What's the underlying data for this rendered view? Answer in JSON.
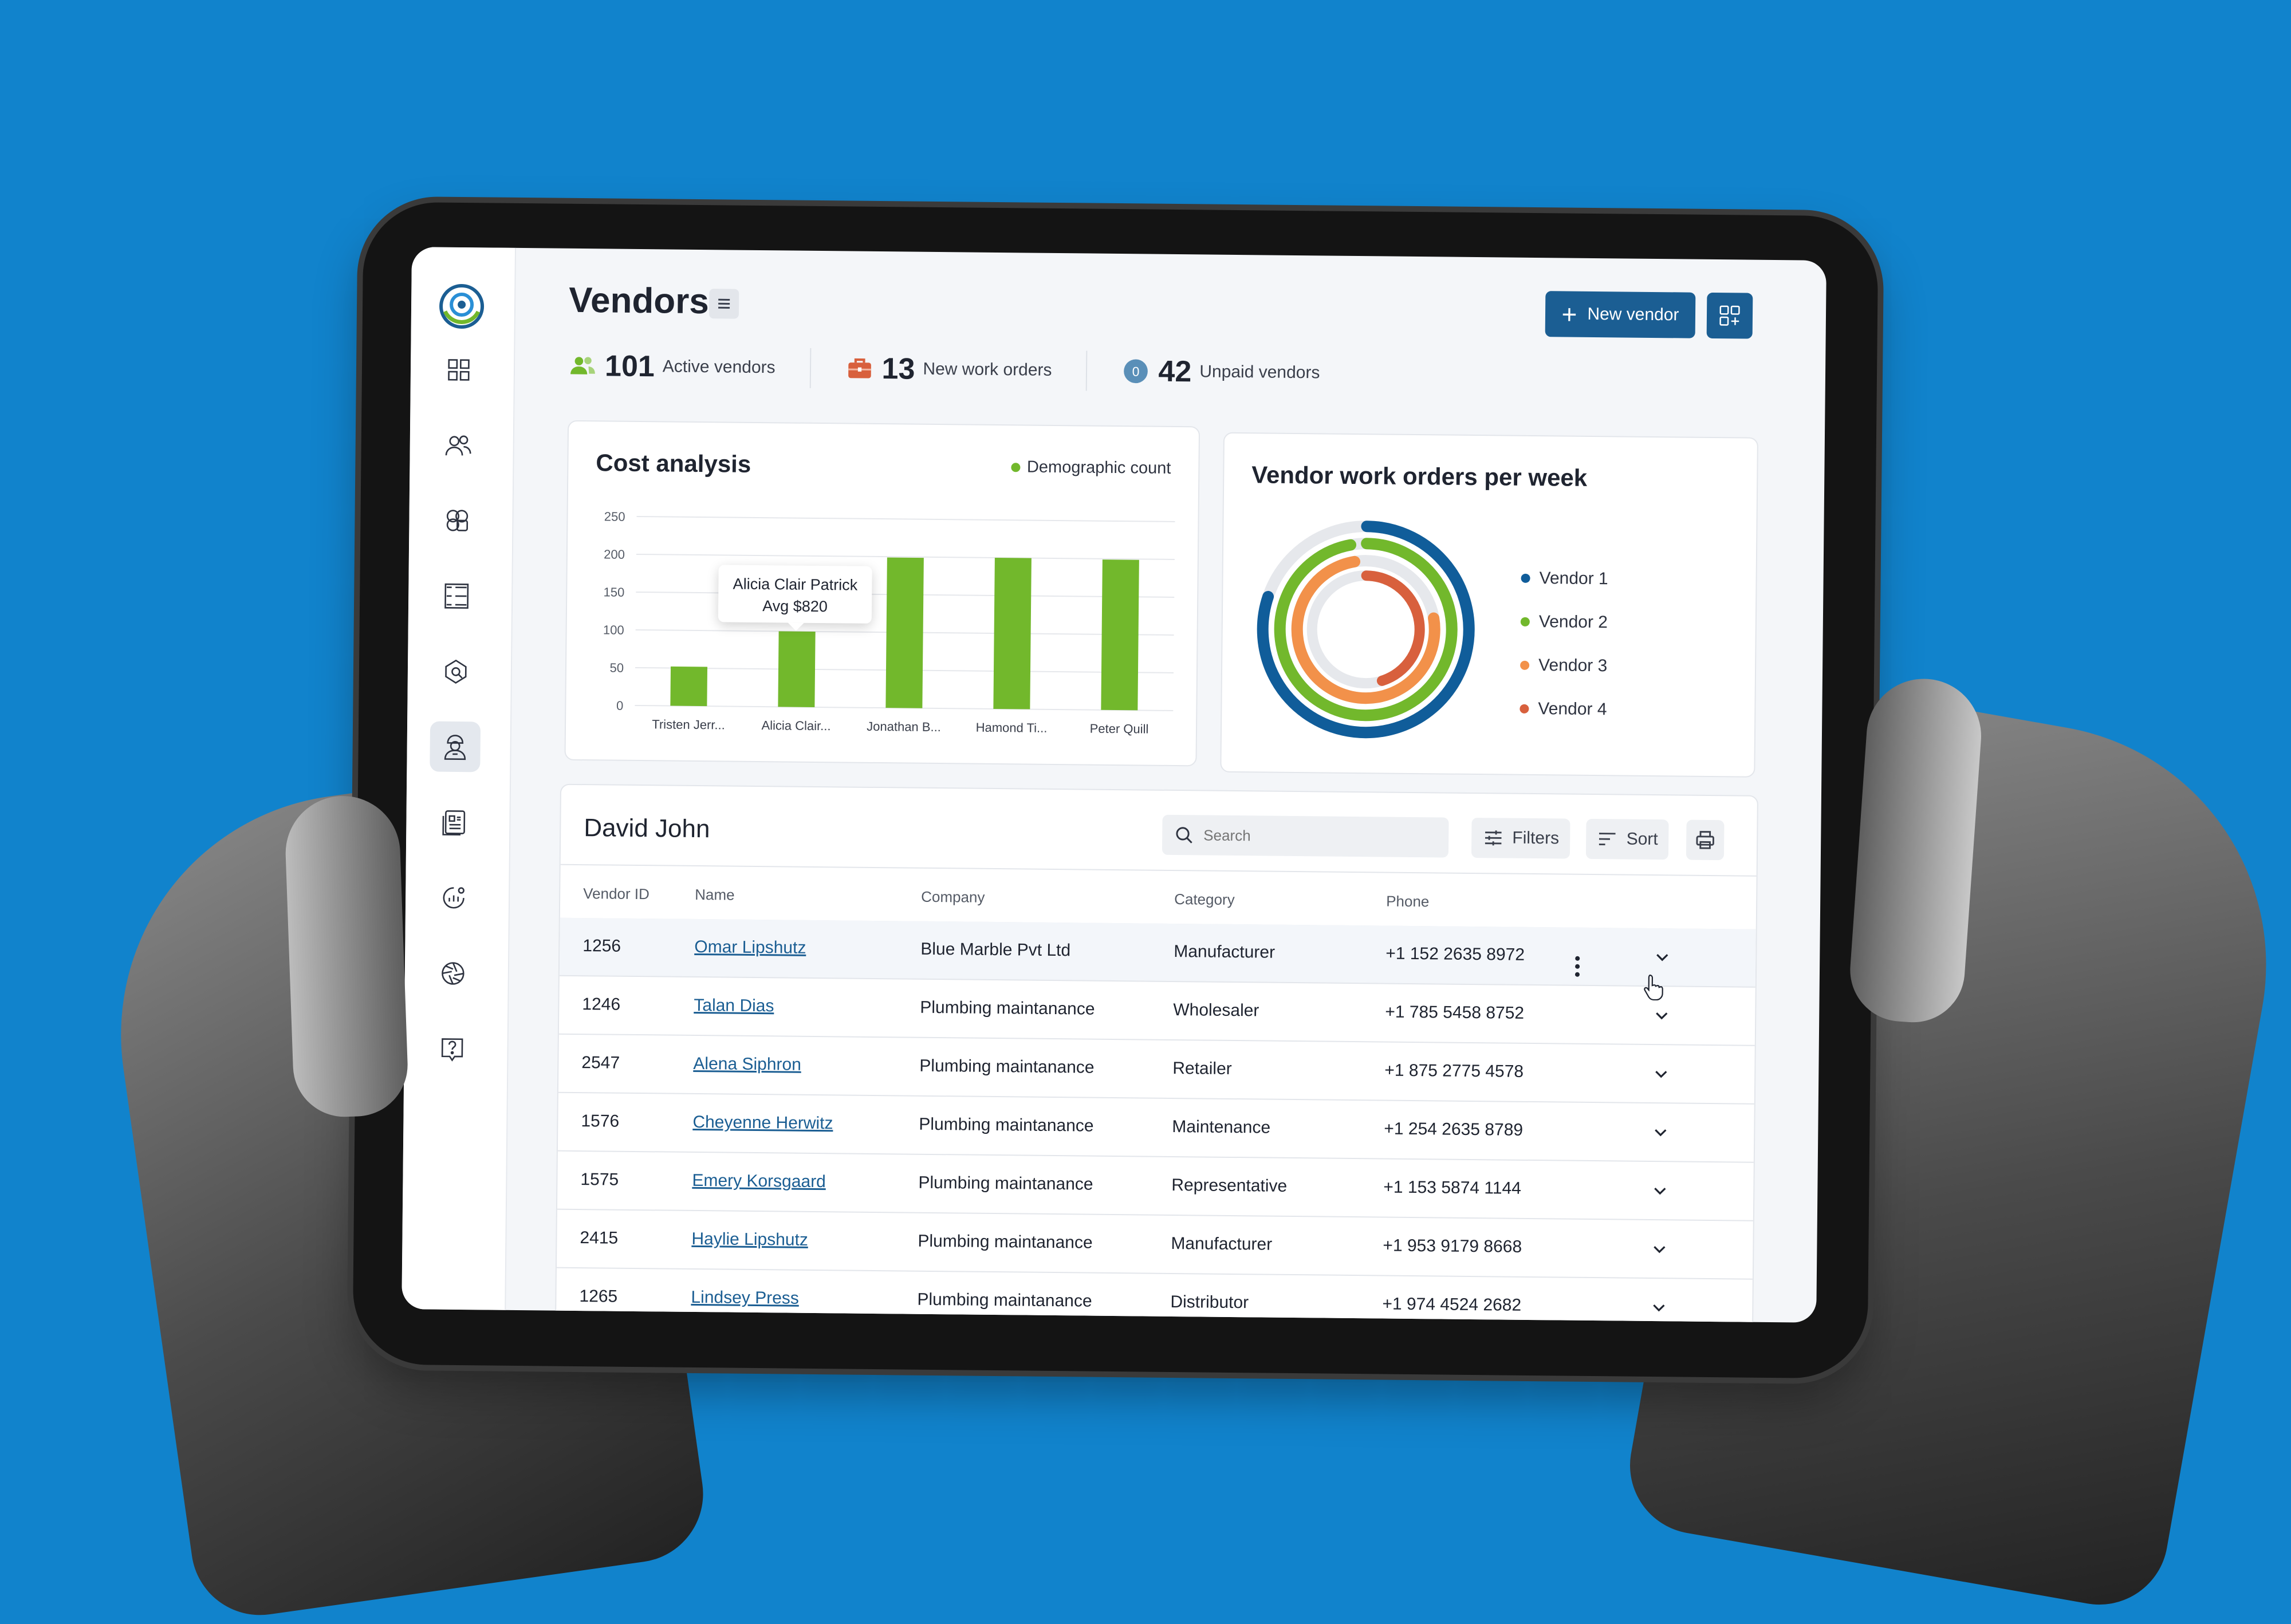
{
  "colors": {
    "background": "#1183cc",
    "primary": "#1b5e93",
    "bar_green": "#72b82c",
    "vendor1": "#105d9a",
    "vendor2": "#72b82c",
    "vendor3": "#f2914a",
    "vendor4": "#d8603d"
  },
  "header": {
    "title": "Vendors",
    "menu_icon": "hamburger-icon",
    "new_vendor_label": "New vendor",
    "layout_icon": "dashboard-add-icon"
  },
  "sidebar": {
    "items": [
      {
        "icon": "dashboard-grid-icon"
      },
      {
        "icon": "users-icon"
      },
      {
        "icon": "assets-icon"
      },
      {
        "icon": "checklist-icon"
      },
      {
        "icon": "location-icon"
      },
      {
        "icon": "vendor-worker-icon",
        "active": true
      },
      {
        "icon": "reports-icon"
      },
      {
        "icon": "analytics-icon"
      },
      {
        "icon": "settings-aperture-icon"
      },
      {
        "icon": "help-icon"
      }
    ]
  },
  "stats": [
    {
      "value": "101",
      "label": "Active vendors",
      "icon": "users-icon"
    },
    {
      "value": "13",
      "label": "New work orders",
      "icon": "briefcase-icon"
    },
    {
      "value": "42",
      "label": "Unpaid vendors",
      "icon": "zero-badge-icon",
      "badge": "0"
    }
  ],
  "cost_analysis": {
    "title": "Cost analysis",
    "tooltip_name": "Alicia Clair Patrick",
    "tooltip_value": "Avg $820"
  },
  "chart_data": [
    {
      "type": "bar",
      "title": "Cost analysis",
      "categories": [
        "Tristen Jerr...",
        "Alicia Clair...",
        "Jonathan B...",
        "Hamond Ti...",
        "Peter Quill"
      ],
      "series": [
        {
          "name": "Demographic count",
          "values": [
            52,
            100,
            199,
            200,
            199
          ]
        }
      ],
      "yticks": [
        250,
        200,
        150,
        100,
        50,
        0
      ],
      "ylim": [
        0,
        250
      ],
      "grid": true,
      "legend": "top-right"
    },
    {
      "type": "pie",
      "title": "Vendor work orders per week",
      "categories": [
        "Vendor 1",
        "Vendor 2",
        "Vendor 3",
        "Vendor 4"
      ],
      "values": [
        80,
        97,
        75,
        45
      ],
      "legend": "right"
    }
  ],
  "table": {
    "title": "David John",
    "search_placeholder": "Search",
    "filters_label": "Filters",
    "sort_label": "Sort",
    "print_icon": "printer-icon",
    "columns": [
      "Vendor ID",
      "Name",
      "Company",
      "Category",
      "Phone"
    ],
    "rows": [
      {
        "id": "1256",
        "name": "Omar Lipshutz",
        "company": "Blue Marble Pvt Ltd",
        "category": "Manufacturer",
        "phone": "+1 152 2635 8972"
      },
      {
        "id": "1246",
        "name": "Talan Dias",
        "company": "Plumbing maintanance",
        "category": "Wholesaler",
        "phone": "+1 785 5458 8752"
      },
      {
        "id": "2547",
        "name": "Alena Siphron",
        "company": "Plumbing maintanance",
        "category": "Retailer",
        "phone": "+1 875 2775 4578"
      },
      {
        "id": "1576",
        "name": "Cheyenne Herwitz",
        "company": "Plumbing maintanance",
        "category": "Maintenance",
        "phone": "+1 254 2635 8789"
      },
      {
        "id": "1575",
        "name": "Emery Korsgaard",
        "company": "Plumbing maintanance",
        "category": "Representative",
        "phone": "+1 153 5874 1144"
      },
      {
        "id": "2415",
        "name": "Haylie Lipshutz",
        "company": "Plumbing maintanance",
        "category": "Manufacturer",
        "phone": "+1 953 9179 8668"
      },
      {
        "id": "1265",
        "name": "Lindsey Press",
        "company": "Plumbing maintanance",
        "category": "Distributor",
        "phone": "+1 974 4524 2682"
      }
    ]
  }
}
